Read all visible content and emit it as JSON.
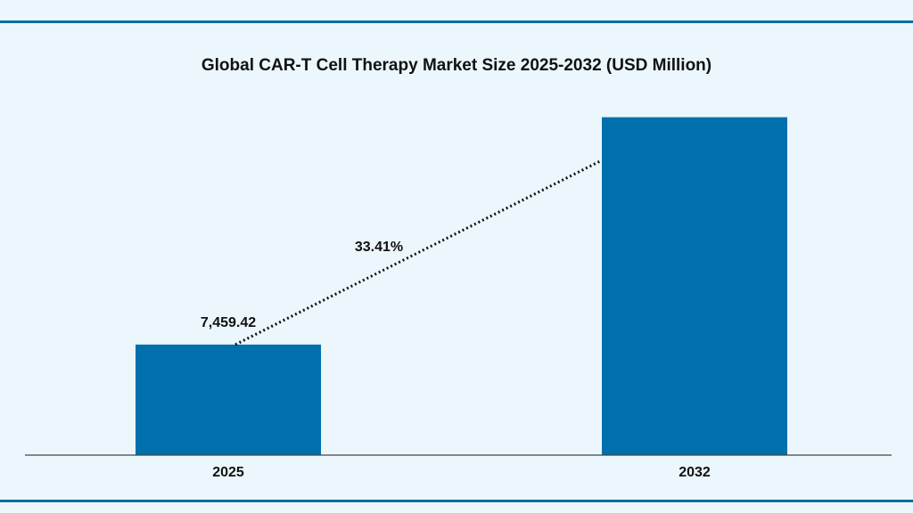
{
  "chart_data": {
    "type": "bar",
    "title": "Global CAR-T Cell Therapy Market Size 2025-2032 (USD Million)",
    "categories": [
      "2025",
      "2032"
    ],
    "values": [
      7459.42,
      22800
    ],
    "value_labels": [
      "7,459.42",
      null
    ],
    "color": "#0070ad",
    "ylim": [
      0,
      25000
    ],
    "annotation": "33.41%"
  }
}
